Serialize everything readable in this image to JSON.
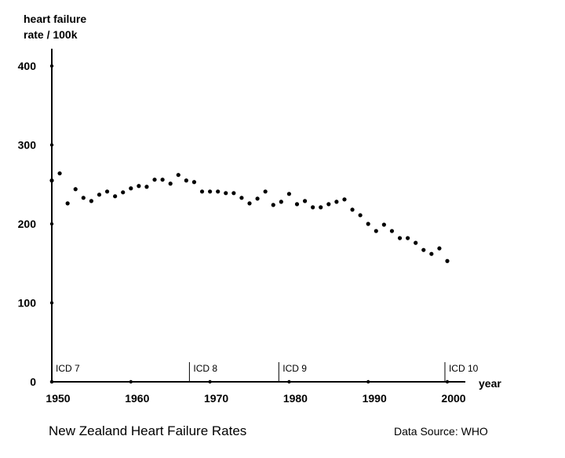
{
  "chart_data": {
    "type": "scatter",
    "title": "New Zealand Heart Failure Rates",
    "source": "Data Source: WHO",
    "ylabel_lines": [
      "heart failure",
      "rate / 100k"
    ],
    "xlabel": "year",
    "xlim": [
      1950,
      2002.5
    ],
    "ylim": [
      0,
      400
    ],
    "x_ticks": [
      "1950",
      "1960",
      "1970",
      "1980",
      "1990",
      "2000"
    ],
    "y_ticks": [
      "0",
      "100",
      "200",
      "300",
      "400"
    ],
    "grid": false,
    "x": [
      1950,
      1951,
      1952,
      1953,
      1954,
      1955,
      1956,
      1957,
      1958,
      1959,
      1960,
      1961,
      1962,
      1963,
      1964,
      1965,
      1966,
      1967,
      1968,
      1969,
      1970,
      1971,
      1972,
      1973,
      1974,
      1975,
      1976,
      1977,
      1978,
      1979,
      1980,
      1981,
      1982,
      1983,
      1984,
      1985,
      1986,
      1987,
      1988,
      1989,
      1990,
      1991,
      1992,
      1993,
      1994,
      1995,
      1996,
      1997,
      1998,
      1999,
      2000
    ],
    "y": [
      255,
      264,
      226,
      244,
      233,
      229,
      237,
      241,
      235,
      240,
      245,
      248,
      247,
      256,
      256,
      251,
      262,
      255,
      253,
      241,
      241,
      241,
      239,
      239,
      233,
      226,
      232,
      241,
      224,
      228,
      238,
      225,
      229,
      221,
      221,
      225,
      228,
      231,
      218,
      211,
      200,
      191,
      199,
      191,
      182,
      182,
      176,
      167,
      162,
      169,
      153
    ],
    "annotations": [
      {
        "label": "ICD 7",
        "year": 1950
      },
      {
        "label": "ICD 8",
        "year": 1967.4
      },
      {
        "label": "ICD 9",
        "year": 1978.7
      },
      {
        "label": "ICD 10",
        "year": 1999.7
      }
    ]
  }
}
